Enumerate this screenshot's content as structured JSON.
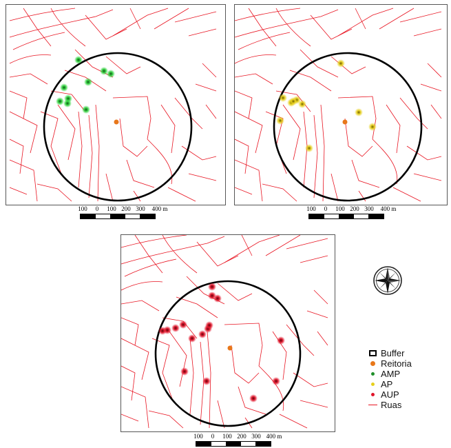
{
  "colors": {
    "roads": "#e8121f",
    "buffer": "#000000",
    "reitoria": "#e8771a",
    "amp": "#2fd13c",
    "ap": "#e6cf1c",
    "aup": "#e0142a"
  },
  "scale": {
    "labels": [
      "100",
      "0",
      "100",
      "200",
      "300",
      "400 m"
    ]
  },
  "legend": {
    "items": [
      {
        "label": "Buffer",
        "symbol": "box"
      },
      {
        "label": "Reitoria",
        "symbol": "dot-reitoria"
      },
      {
        "label": "AMP",
        "symbol": "dot-amp"
      },
      {
        "label": "AP",
        "symbol": "dot-ap"
      },
      {
        "label": "AUP",
        "symbol": "dot-aup"
      },
      {
        "label": "Ruas",
        "symbol": "line"
      }
    ]
  },
  "compass": {
    "icon": "north-arrow-compass-rose"
  },
  "maps": [
    {
      "id": "amp",
      "point_class": "AMP",
      "point_count": 9
    },
    {
      "id": "ap",
      "point_class": "AP",
      "point_count": 10
    },
    {
      "id": "aup",
      "point_class": "AUP",
      "point_count": 16
    }
  ]
}
